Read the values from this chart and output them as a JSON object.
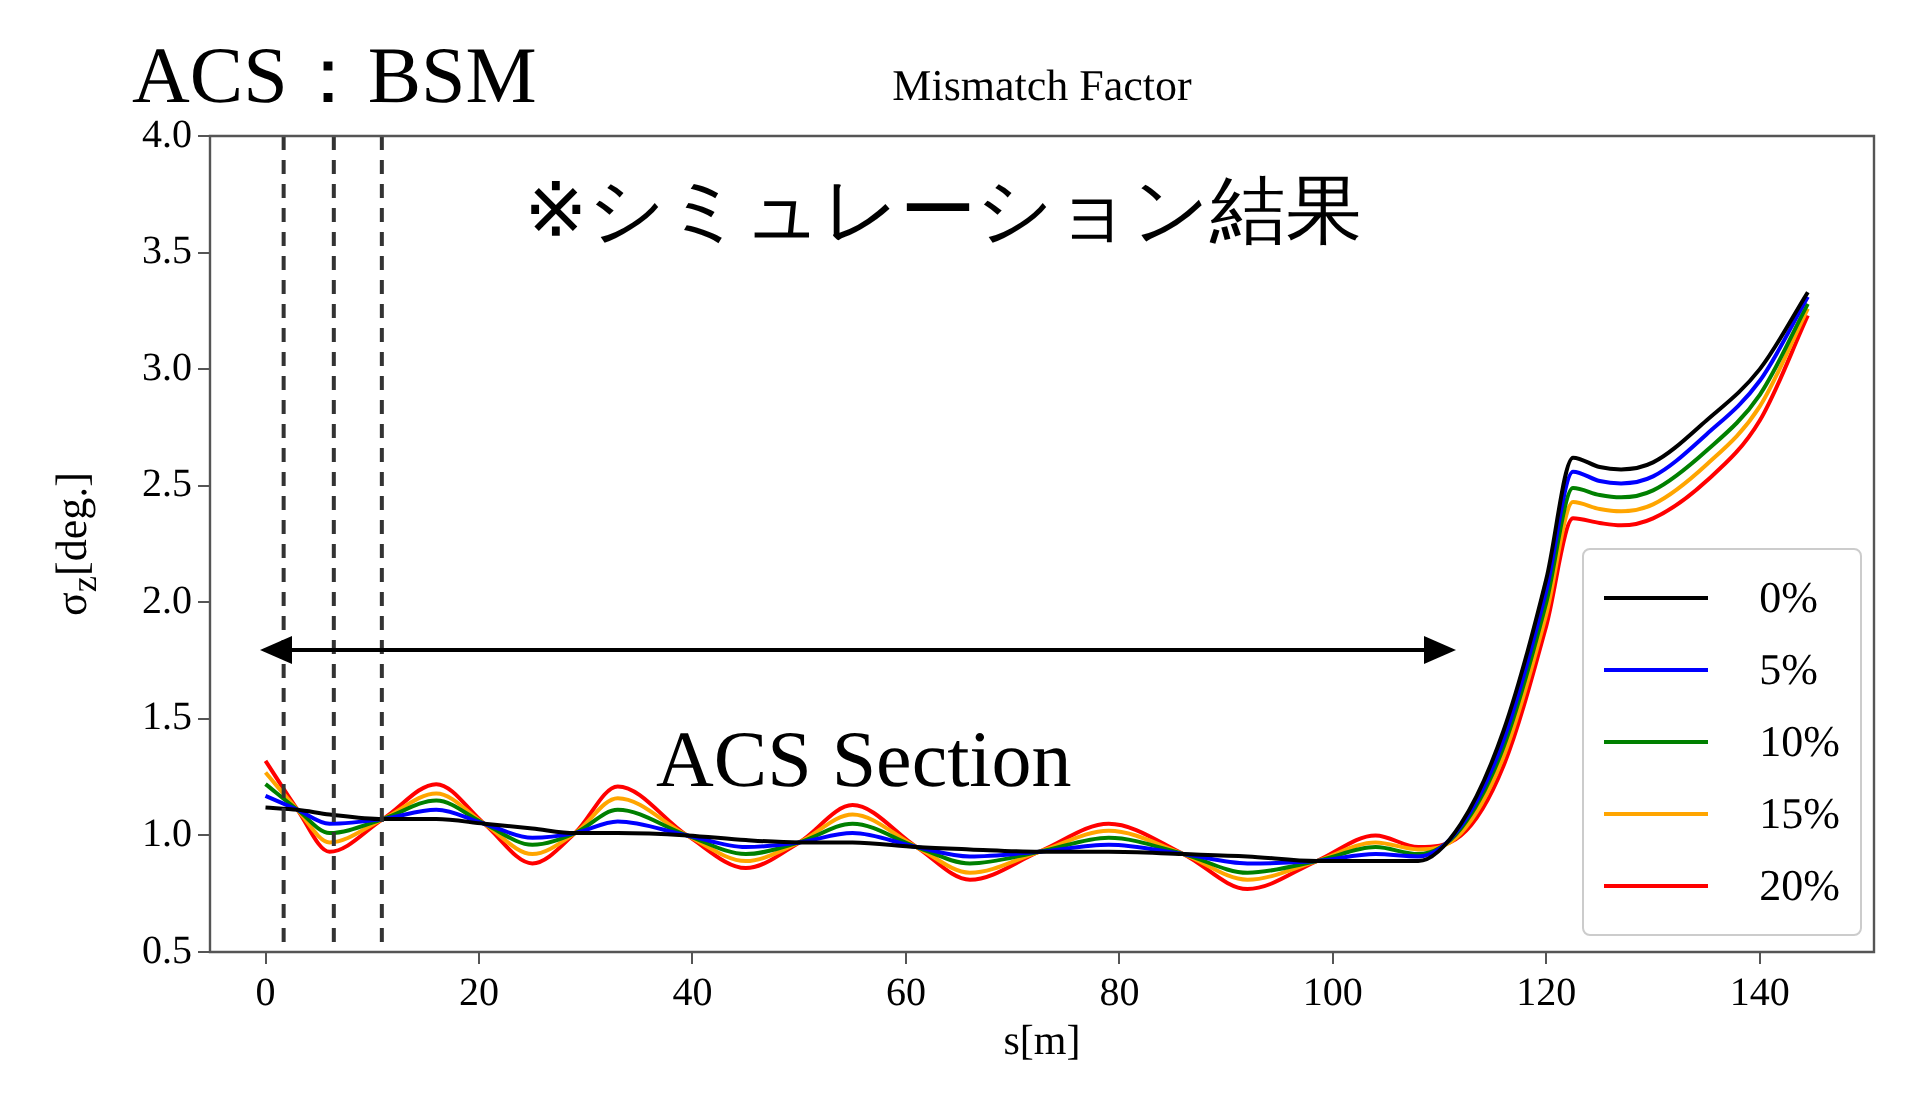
{
  "chart_data": {
    "type": "line",
    "title": "Mismatch Factor",
    "xlabel": "s[m]",
    "ylabel": "σ$_{z}$[deg.]",
    "annotations": [
      "ACS：BSM",
      "※シミュレーション結果",
      "ACS Section"
    ],
    "x": [
      0,
      3,
      6,
      11,
      16,
      20.5,
      25,
      29,
      33,
      39.5,
      45,
      50,
      55,
      61,
      66,
      72.5,
      79,
      86,
      92,
      98.5,
      104,
      108,
      112,
      116,
      120,
      122.5,
      125,
      127,
      130,
      135,
      140,
      144.5
    ],
    "series": [
      {
        "name": "0%",
        "color": "#000000",
        "values": [
          1.12,
          1.11,
          1.09,
          1.07,
          1.07,
          1.05,
          1.03,
          1.01,
          1.01,
          1.0,
          0.98,
          0.97,
          0.97,
          0.95,
          0.94,
          0.93,
          0.93,
          0.92,
          0.91,
          0.89,
          0.89,
          0.89,
          1.05,
          1.45,
          2.1,
          2.62,
          2.58,
          2.57,
          2.6,
          2.78,
          3.0,
          3.33
        ]
      },
      {
        "name": "5%",
        "color": "#0000ff",
        "values": [
          1.17,
          1.11,
          1.05,
          1.07,
          1.11,
          1.05,
          0.99,
          1.01,
          1.06,
          1.0,
          0.95,
          0.97,
          1.01,
          0.95,
          0.91,
          0.93,
          0.96,
          0.92,
          0.88,
          0.89,
          0.92,
          0.91,
          1.04,
          1.41,
          2.05,
          2.56,
          2.52,
          2.51,
          2.54,
          2.72,
          2.95,
          3.31
        ]
      },
      {
        "name": "10%",
        "color": "#008000",
        "values": [
          1.22,
          1.11,
          1.01,
          1.07,
          1.15,
          1.05,
          0.96,
          1.01,
          1.11,
          1.0,
          0.92,
          0.97,
          1.05,
          0.95,
          0.88,
          0.93,
          0.99,
          0.92,
          0.84,
          0.89,
          0.95,
          0.92,
          1.03,
          1.38,
          2.0,
          2.49,
          2.46,
          2.45,
          2.48,
          2.65,
          2.89,
          3.28
        ]
      },
      {
        "name": "15%",
        "color": "#ffa500",
        "values": [
          1.27,
          1.11,
          0.97,
          1.07,
          1.18,
          1.05,
          0.92,
          1.01,
          1.16,
          1.0,
          0.89,
          0.97,
          1.09,
          0.95,
          0.84,
          0.93,
          1.02,
          0.92,
          0.81,
          0.89,
          0.97,
          0.94,
          1.01,
          1.34,
          1.95,
          2.43,
          2.4,
          2.39,
          2.42,
          2.59,
          2.84,
          3.26
        ]
      },
      {
        "name": "20%",
        "color": "#ff0000",
        "values": [
          1.32,
          1.11,
          0.93,
          1.07,
          1.22,
          1.05,
          0.88,
          1.01,
          1.21,
          1.0,
          0.86,
          0.97,
          1.13,
          0.95,
          0.81,
          0.93,
          1.05,
          0.92,
          0.77,
          0.89,
          1.0,
          0.95,
          1.0,
          1.3,
          1.9,
          2.36,
          2.34,
          2.33,
          2.36,
          2.52,
          2.78,
          3.23
        ]
      }
    ],
    "xlim": [
      -5.2,
      150.7
    ],
    "xticks": [
      0,
      20,
      40,
      60,
      80,
      100,
      120,
      140
    ],
    "ylim": [
      0.5,
      4.0
    ],
    "yticks": [
      {
        "value": 0.5,
        "label": "0.5"
      },
      {
        "value": 1.0,
        "label": "1.0"
      },
      {
        "value": 1.5,
        "label": "1.5"
      },
      {
        "value": 2.0,
        "label": "2.0"
      },
      {
        "value": 2.5,
        "label": "2.5"
      },
      {
        "value": 3.0,
        "label": "3.0"
      },
      {
        "value": 3.5,
        "label": "3.5"
      },
      {
        "value": 4.0,
        "label": "4.0"
      }
    ],
    "ref_lines": [
      {
        "axis": "x",
        "value": 1.7,
        "color": "#333333",
        "line_style": "dashed"
      },
      {
        "axis": "x",
        "value": 6.4,
        "color": "#333333",
        "line_style": "dashed"
      },
      {
        "axis": "x",
        "value": 10.9,
        "color": "#333333",
        "line_style": "dashed"
      }
    ],
    "grid": false,
    "legend": "bottom right",
    "marker": "none",
    "line_style": "solid"
  }
}
